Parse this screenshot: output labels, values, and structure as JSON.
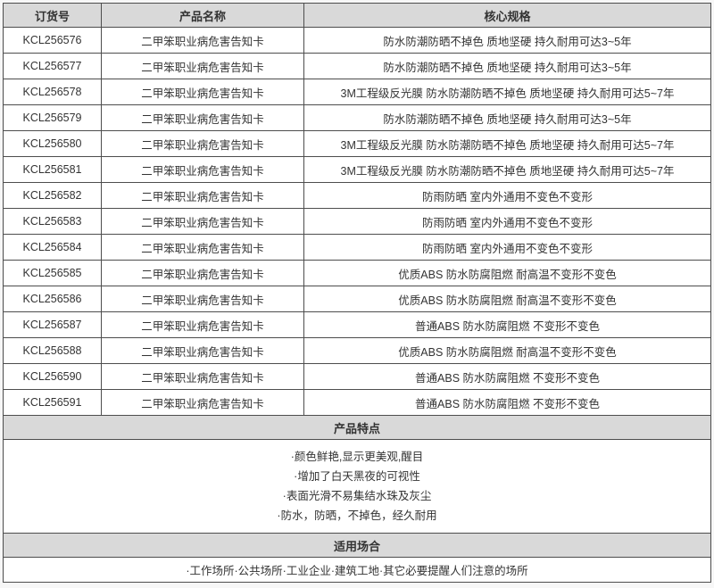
{
  "colors": {
    "header_bg": "#d9d9d9",
    "border": "#4d4d4d",
    "text": "#333333",
    "row_bg": "#ffffff"
  },
  "table": {
    "headers": [
      "订货号",
      "产品名称",
      "核心规格"
    ],
    "rows": [
      {
        "order_no": "KCL256576",
        "product_name": "二甲笨职业病危害告知卡",
        "spec": "防水防潮防晒不掉色 质地坚硬 持久耐用可达3~5年"
      },
      {
        "order_no": "KCL256577",
        "product_name": "二甲笨职业病危害告知卡",
        "spec": "防水防潮防晒不掉色 质地坚硬 持久耐用可达3~5年"
      },
      {
        "order_no": "KCL256578",
        "product_name": "二甲笨职业病危害告知卡",
        "spec": "3M工程级反光膜 防水防潮防晒不掉色 质地坚硬 持久耐用可达5~7年"
      },
      {
        "order_no": "KCL256579",
        "product_name": "二甲笨职业病危害告知卡",
        "spec": "防水防潮防晒不掉色 质地坚硬 持久耐用可达3~5年"
      },
      {
        "order_no": "KCL256580",
        "product_name": "二甲笨职业病危害告知卡",
        "spec": "3M工程级反光膜 防水防潮防晒不掉色 质地坚硬 持久耐用可达5~7年"
      },
      {
        "order_no": "KCL256581",
        "product_name": "二甲笨职业病危害告知卡",
        "spec": "3M工程级反光膜 防水防潮防晒不掉色 质地坚硬 持久耐用可达5~7年"
      },
      {
        "order_no": "KCL256582",
        "product_name": "二甲笨职业病危害告知卡",
        "spec": "防雨防晒 室内外通用不变色不变形"
      },
      {
        "order_no": "KCL256583",
        "product_name": "二甲笨职业病危害告知卡",
        "spec": "防雨防晒 室内外通用不变色不变形"
      },
      {
        "order_no": "KCL256584",
        "product_name": "二甲笨职业病危害告知卡",
        "spec": "防雨防晒 室内外通用不变色不变形"
      },
      {
        "order_no": "KCL256585",
        "product_name": "二甲笨职业病危害告知卡",
        "spec": "优质ABS 防水防腐阻燃 耐高温不变形不变色"
      },
      {
        "order_no": "KCL256586",
        "product_name": "二甲笨职业病危害告知卡",
        "spec": "优质ABS 防水防腐阻燃 耐高温不变形不变色"
      },
      {
        "order_no": "KCL256587",
        "product_name": "二甲笨职业病危害告知卡",
        "spec": "普通ABS 防水防腐阻燃 不变形不变色"
      },
      {
        "order_no": "KCL256588",
        "product_name": "二甲笨职业病危害告知卡",
        "spec": "优质ABS 防水防腐阻燃 耐高温不变形不变色"
      },
      {
        "order_no": "KCL256590",
        "product_name": "二甲笨职业病危害告知卡",
        "spec": "普通ABS 防水防腐阻燃 不变形不变色"
      },
      {
        "order_no": "KCL256591",
        "product_name": "二甲笨职业病危害告知卡",
        "spec": "普通ABS 防水防腐阻燃 不变形不变色"
      }
    ]
  },
  "features": {
    "header": "产品特点",
    "items": [
      "·颜色鲜艳,显示更美观,醒目",
      "·增加了白天黑夜的可视性",
      "·表面光滑不易集结水珠及灰尘",
      "·防水，防晒，不掉色，经久耐用"
    ]
  },
  "usage": {
    "header": "适用场合",
    "content": "·工作场所·公共场所·工业企业·建筑工地·其它必要提醒人们注意的场所"
  }
}
